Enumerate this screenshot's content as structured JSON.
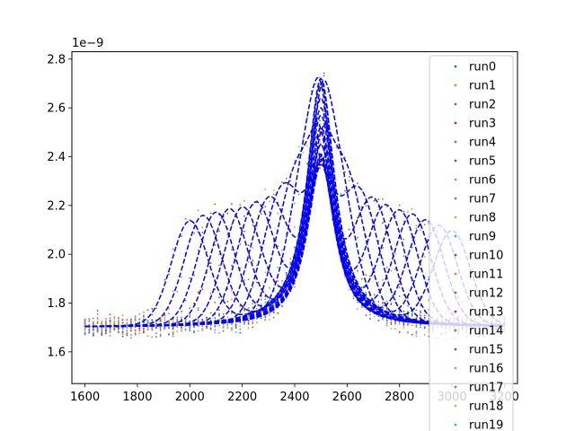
{
  "chart_data": {
    "type": "scatter",
    "title": "",
    "xlabel": "",
    "ylabel": "",
    "y_offset_text": "1e−9",
    "xlim": [
      1550,
      3250
    ],
    "ylim": [
      1.47,
      2.83
    ],
    "xticks": [
      1600,
      1800,
      2000,
      2200,
      2400,
      2600,
      2800,
      3000,
      3200
    ],
    "yticks": [
      1.6,
      1.8,
      2.0,
      2.2,
      2.4,
      2.6,
      2.8
    ],
    "x_range": [
      1600,
      3200
    ],
    "baseline": 1.7,
    "main_peak": {
      "center": 2500,
      "width": 65
    },
    "legend_position": "top-right",
    "fit_line_color": "#0000ff",
    "series": [
      {
        "name": "run0",
        "color": "#1f77b4",
        "peak_amplitude": 1.02,
        "secondary_peak": {
          "center": 2000,
          "amplitude": 0.42
        }
      },
      {
        "name": "run1",
        "color": "#ff7f0e",
        "peak_amplitude": 0.94,
        "secondary_peak": {
          "center": 2050,
          "amplitude": 0.44
        }
      },
      {
        "name": "run2",
        "color": "#2ca02c",
        "peak_amplitude": 0.87,
        "secondary_peak": {
          "center": 2100,
          "amplitude": 0.45
        }
      },
      {
        "name": "run3",
        "color": "#d62728",
        "peak_amplitude": 0.8,
        "secondary_peak": {
          "center": 2150,
          "amplitude": 0.46
        }
      },
      {
        "name": "run4",
        "color": "#9467bd",
        "peak_amplitude": 0.75,
        "secondary_peak": {
          "center": 2200,
          "amplitude": 0.46
        }
      },
      {
        "name": "run5",
        "color": "#8c564b",
        "peak_amplitude": 0.7,
        "secondary_peak": {
          "center": 2250,
          "amplitude": 0.47
        }
      },
      {
        "name": "run6",
        "color": "#e377c2",
        "peak_amplitude": 0.68,
        "secondary_peak": {
          "center": 2300,
          "amplitude": 0.47
        }
      },
      {
        "name": "run7",
        "color": "#7f7f7f",
        "peak_amplitude": 0.66,
        "secondary_peak": {
          "center": 2350,
          "amplitude": 0.48
        }
      },
      {
        "name": "run8",
        "color": "#bcbd22",
        "peak_amplitude": 0.64,
        "secondary_peak": {
          "center": 2400,
          "amplitude": 0.48
        }
      },
      {
        "name": "run9",
        "color": "#17becf",
        "peak_amplitude": 0.63,
        "secondary_peak": {
          "center": 2450,
          "amplitude": 0.48
        }
      },
      {
        "name": "run10",
        "color": "#1f77b4",
        "peak_amplitude": 0.62,
        "secondary_peak": {
          "center": 2550,
          "amplitude": 0.48
        }
      },
      {
        "name": "run11",
        "color": "#ff7f0e",
        "peak_amplitude": 0.63,
        "secondary_peak": {
          "center": 2600,
          "amplitude": 0.48
        }
      },
      {
        "name": "run12",
        "color": "#2ca02c",
        "peak_amplitude": 0.64,
        "secondary_peak": {
          "center": 2650,
          "amplitude": 0.47
        }
      },
      {
        "name": "run13",
        "color": "#d62728",
        "peak_amplitude": 0.66,
        "secondary_peak": {
          "center": 2700,
          "amplitude": 0.47
        }
      },
      {
        "name": "run14",
        "color": "#9467bd",
        "peak_amplitude": 0.68,
        "secondary_peak": {
          "center": 2750,
          "amplitude": 0.46
        }
      },
      {
        "name": "run15",
        "color": "#8c564b",
        "peak_amplitude": 0.71,
        "secondary_peak": {
          "center": 2800,
          "amplitude": 0.45
        }
      },
      {
        "name": "run16",
        "color": "#e377c2",
        "peak_amplitude": 0.75,
        "secondary_peak": {
          "center": 2850,
          "amplitude": 0.44
        }
      },
      {
        "name": "run17",
        "color": "#7f7f7f",
        "peak_amplitude": 0.82,
        "secondary_peak": {
          "center": 2900,
          "amplitude": 0.42
        }
      },
      {
        "name": "run18",
        "color": "#bcbd22",
        "peak_amplitude": 0.9,
        "secondary_peak": {
          "center": 2950,
          "amplitude": 0.4
        }
      },
      {
        "name": "run19",
        "color": "#17becf",
        "peak_amplitude": 1.0,
        "secondary_peak": {
          "center": 3000,
          "amplitude": 0.38
        }
      }
    ]
  }
}
